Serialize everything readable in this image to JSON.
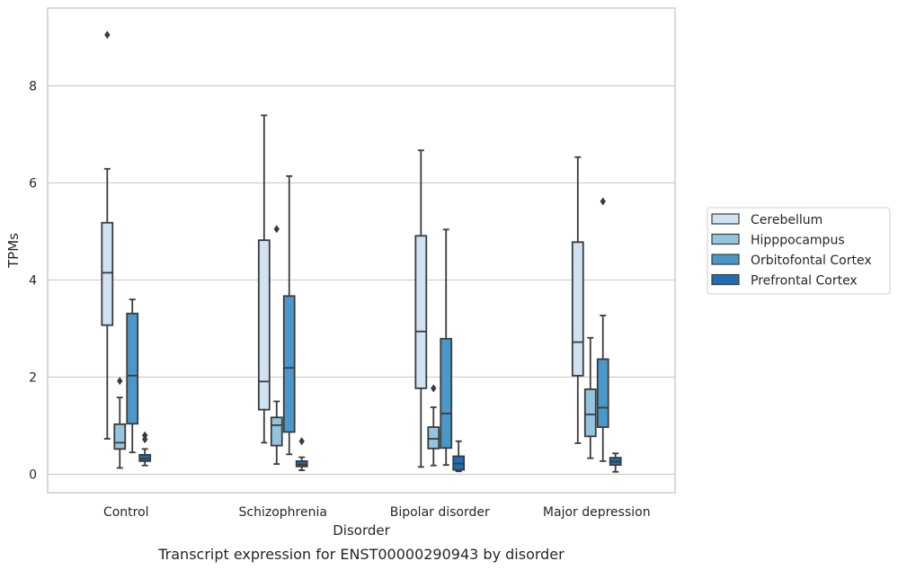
{
  "chart_data": {
    "type": "box",
    "title": "",
    "caption": "Transcript expression for ENST00000290943 by disorder",
    "xlabel": "Disorder",
    "ylabel": "TPMs",
    "ylim": [
      -0.38,
      9.6
    ],
    "yticks": [
      0,
      2,
      4,
      6,
      8
    ],
    "grid": "horizontal",
    "legend_position": "right",
    "categories": [
      "Control",
      "Schizophrenia",
      "Bipolar disorder",
      "Major depression"
    ],
    "series": [
      {
        "name": "Cerebellum",
        "color": "#d0e1f2",
        "boxes": [
          {
            "whisker_low": 0.73,
            "q1": 3.07,
            "median": 4.15,
            "q3": 5.18,
            "whisker_high": 6.29,
            "outliers": [
              9.05
            ]
          },
          {
            "whisker_low": 0.65,
            "q1": 1.33,
            "median": 1.91,
            "q3": 4.82,
            "whisker_high": 7.39,
            "outliers": []
          },
          {
            "whisker_low": 0.15,
            "q1": 1.77,
            "median": 2.94,
            "q3": 4.91,
            "whisker_high": 6.67,
            "outliers": []
          },
          {
            "whisker_low": 0.64,
            "q1": 2.03,
            "median": 2.72,
            "q3": 4.78,
            "whisker_high": 6.53,
            "outliers": []
          }
        ]
      },
      {
        "name": "Hipppocampus",
        "color": "#94c4df",
        "boxes": [
          {
            "whisker_low": 0.13,
            "q1": 0.52,
            "median": 0.65,
            "q3": 1.03,
            "whisker_high": 1.58,
            "outliers": [
              1.92
            ]
          },
          {
            "whisker_low": 0.21,
            "q1": 0.59,
            "median": 1.01,
            "q3": 1.17,
            "whisker_high": 1.5,
            "outliers": [
              5.05
            ]
          },
          {
            "whisker_low": 0.18,
            "q1": 0.53,
            "median": 0.73,
            "q3": 0.97,
            "whisker_high": 1.38,
            "outliers": [
              1.77
            ]
          },
          {
            "whisker_low": 0.33,
            "q1": 0.78,
            "median": 1.23,
            "q3": 1.75,
            "whisker_high": 2.81,
            "outliers": []
          }
        ]
      },
      {
        "name": "Orbitofontal Cortex",
        "color": "#4a98c9",
        "boxes": [
          {
            "whisker_low": 0.45,
            "q1": 1.04,
            "median": 2.03,
            "q3": 3.31,
            "whisker_high": 3.6,
            "outliers": []
          },
          {
            "whisker_low": 0.41,
            "q1": 0.87,
            "median": 2.19,
            "q3": 3.67,
            "whisker_high": 6.14,
            "outliers": []
          },
          {
            "whisker_low": 0.19,
            "q1": 0.54,
            "median": 1.25,
            "q3": 2.79,
            "whisker_high": 5.04,
            "outliers": []
          },
          {
            "whisker_low": 0.27,
            "q1": 0.97,
            "median": 1.37,
            "q3": 2.37,
            "whisker_high": 3.27,
            "outliers": [
              5.62
            ]
          }
        ]
      },
      {
        "name": "Prefrontal Cortex",
        "color": "#1f6eb3",
        "boxes": [
          {
            "whisker_low": 0.18,
            "q1": 0.27,
            "median": 0.32,
            "q3": 0.4,
            "whisker_high": 0.52,
            "outliers": [
              0.72,
              0.8
            ]
          },
          {
            "whisker_low": 0.08,
            "q1": 0.16,
            "median": 0.2,
            "q3": 0.27,
            "whisker_high": 0.35,
            "outliers": [
              0.68
            ]
          },
          {
            "whisker_low": 0.06,
            "q1": 0.09,
            "median": 0.22,
            "q3": 0.37,
            "whisker_high": 0.68,
            "outliers": []
          },
          {
            "whisker_low": 0.05,
            "q1": 0.19,
            "median": 0.26,
            "q3": 0.34,
            "whisker_high": 0.43,
            "outliers": []
          }
        ]
      }
    ]
  }
}
